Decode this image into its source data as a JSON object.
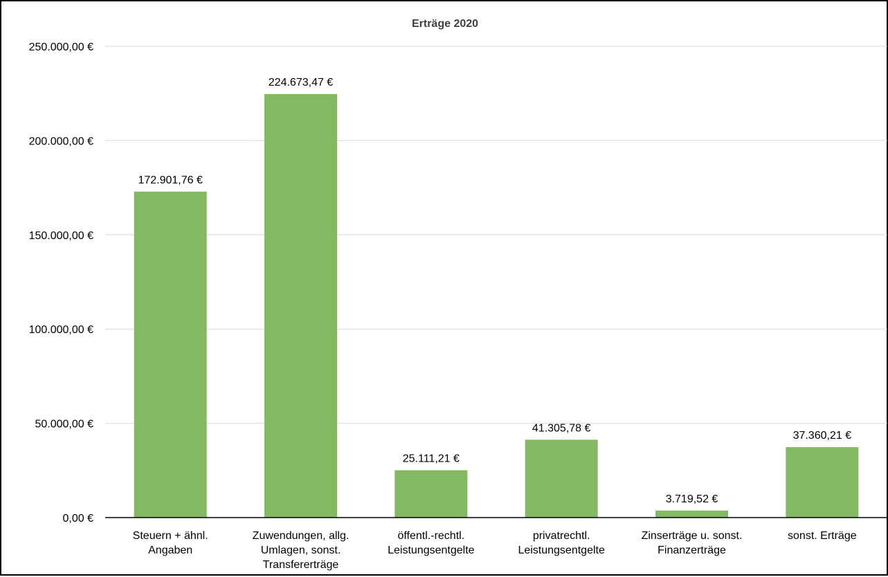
{
  "chart_data": {
    "type": "bar",
    "title": "Erträge 2020",
    "xlabel": "",
    "ylabel": "",
    "ylim": [
      0,
      250000
    ],
    "y_ticks": [
      0,
      50000,
      100000,
      150000,
      200000,
      250000
    ],
    "y_tick_labels": [
      "0,00 €",
      "50.000,00 €",
      "100.000,00 €",
      "150.000,00 €",
      "200.000,00 €",
      "250.000,00 €"
    ],
    "grid": true,
    "legend": "none",
    "categories": [
      [
        "Steuern + ähnl.",
        "Angaben"
      ],
      [
        "Zuwendungen, allg.",
        "Umlagen, sonst.",
        "Transfererträge"
      ],
      [
        "öffentl.-rechtl.",
        "Leistungsentgelte"
      ],
      [
        "privatrechtl.",
        "Leistungsentgelte"
      ],
      [
        "Zinserträge u. sonst.",
        "Finanzerträge"
      ],
      [
        "sonst. Erträge"
      ]
    ],
    "values": [
      172901.76,
      224673.47,
      25111.21,
      41305.78,
      3719.52,
      37360.21
    ],
    "data_labels": [
      "172.901,76 €",
      "224.673,47 €",
      "25.111,21 €",
      "41.305,78 €",
      "3.719,52 €",
      "37.360,21 €"
    ],
    "colors": {
      "bar": "#82b962",
      "grid": "#d9d9d9",
      "axis": "#000000"
    }
  }
}
